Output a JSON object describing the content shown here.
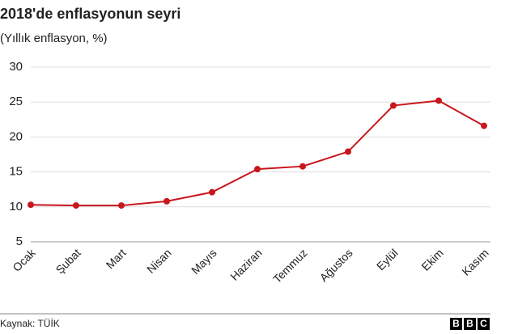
{
  "chart_data": {
    "type": "line",
    "title": "2018'de enflasyonun seyri",
    "subtitle": "(Yıllık enflasyon, %)",
    "categories": [
      "Ocak",
      "Şubat",
      "Mart",
      "Nisan",
      "Mayıs",
      "Haziran",
      "Temmuz",
      "Ağustos",
      "Eylül",
      "Ekim",
      "Kasım"
    ],
    "series": [
      {
        "name": "Yıllık enflasyon",
        "color": "#c8161d",
        "values": [
          10.3,
          10.2,
          10.2,
          10.8,
          12.1,
          15.4,
          15.8,
          17.9,
          24.5,
          25.2,
          21.6
        ]
      }
    ],
    "ylim": [
      5,
      30
    ],
    "yticks": [
      5,
      10,
      15,
      20,
      25,
      30
    ],
    "grid": true,
    "source": "Kaynak: TÜİK",
    "logo": [
      "B",
      "B",
      "C"
    ]
  }
}
